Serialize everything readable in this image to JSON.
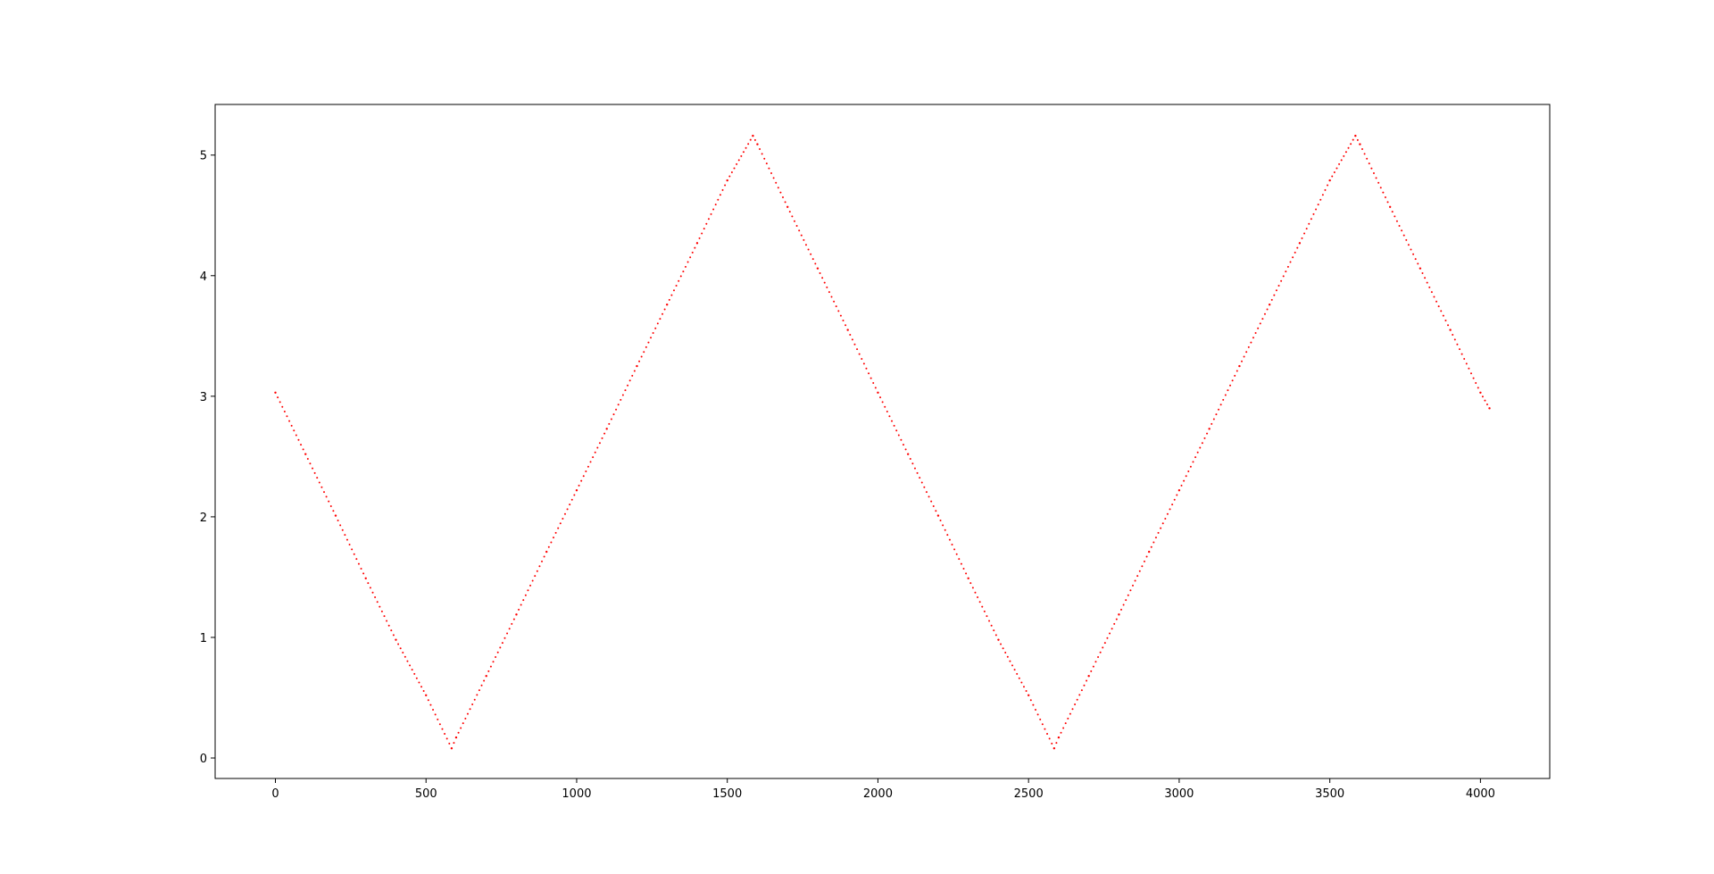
{
  "chart_data": {
    "type": "scatter",
    "title": "",
    "xlabel": "",
    "ylabel": "",
    "xlim": [
      -200,
      4230
    ],
    "ylim": [
      -0.17,
      5.42
    ],
    "x_ticks": [
      0,
      500,
      1000,
      1500,
      2000,
      2500,
      3000,
      3500,
      4000
    ],
    "y_ticks": [
      0,
      1,
      2,
      3,
      4,
      5
    ],
    "grid": false,
    "legend": "none",
    "series": [
      {
        "color": "#ff0000",
        "marker": "point",
        "x": [
          0,
          100,
          200,
          300,
          400,
          500,
          585,
          600,
          700,
          800,
          900,
          1000,
          1100,
          1200,
          1300,
          1400,
          1500,
          1585,
          1600,
          1700,
          1800,
          1900,
          2000,
          2100,
          2200,
          2300,
          2400,
          2500,
          2585,
          2600,
          2700,
          2800,
          2900,
          3000,
          3100,
          3200,
          3300,
          3400,
          3500,
          3585,
          3600,
          3700,
          3800,
          3900,
          4000,
          4030
        ],
        "y": [
          3.03,
          2.52,
          2.01,
          1.49,
          0.98,
          0.52,
          0.08,
          0.17,
          0.68,
          1.19,
          1.71,
          2.22,
          2.73,
          3.25,
          3.76,
          4.27,
          4.79,
          5.16,
          5.09,
          4.57,
          4.06,
          3.55,
          3.03,
          2.52,
          2.01,
          1.49,
          0.98,
          0.52,
          0.08,
          0.17,
          0.68,
          1.19,
          1.71,
          2.22,
          2.73,
          3.25,
          3.76,
          4.27,
          4.79,
          5.16,
          5.09,
          4.57,
          4.06,
          3.55,
          3.03,
          2.9
        ]
      }
    ]
  }
}
